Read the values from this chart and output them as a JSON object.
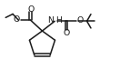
{
  "bg_color": "#ffffff",
  "line_color": "#1a1a1a",
  "line_width": 1.1,
  "font_size": 6.2,
  "figsize": [
    1.43,
    0.76
  ],
  "dpi": 100,
  "xlim": [
    0,
    143
  ],
  "ylim": [
    0,
    76
  ]
}
